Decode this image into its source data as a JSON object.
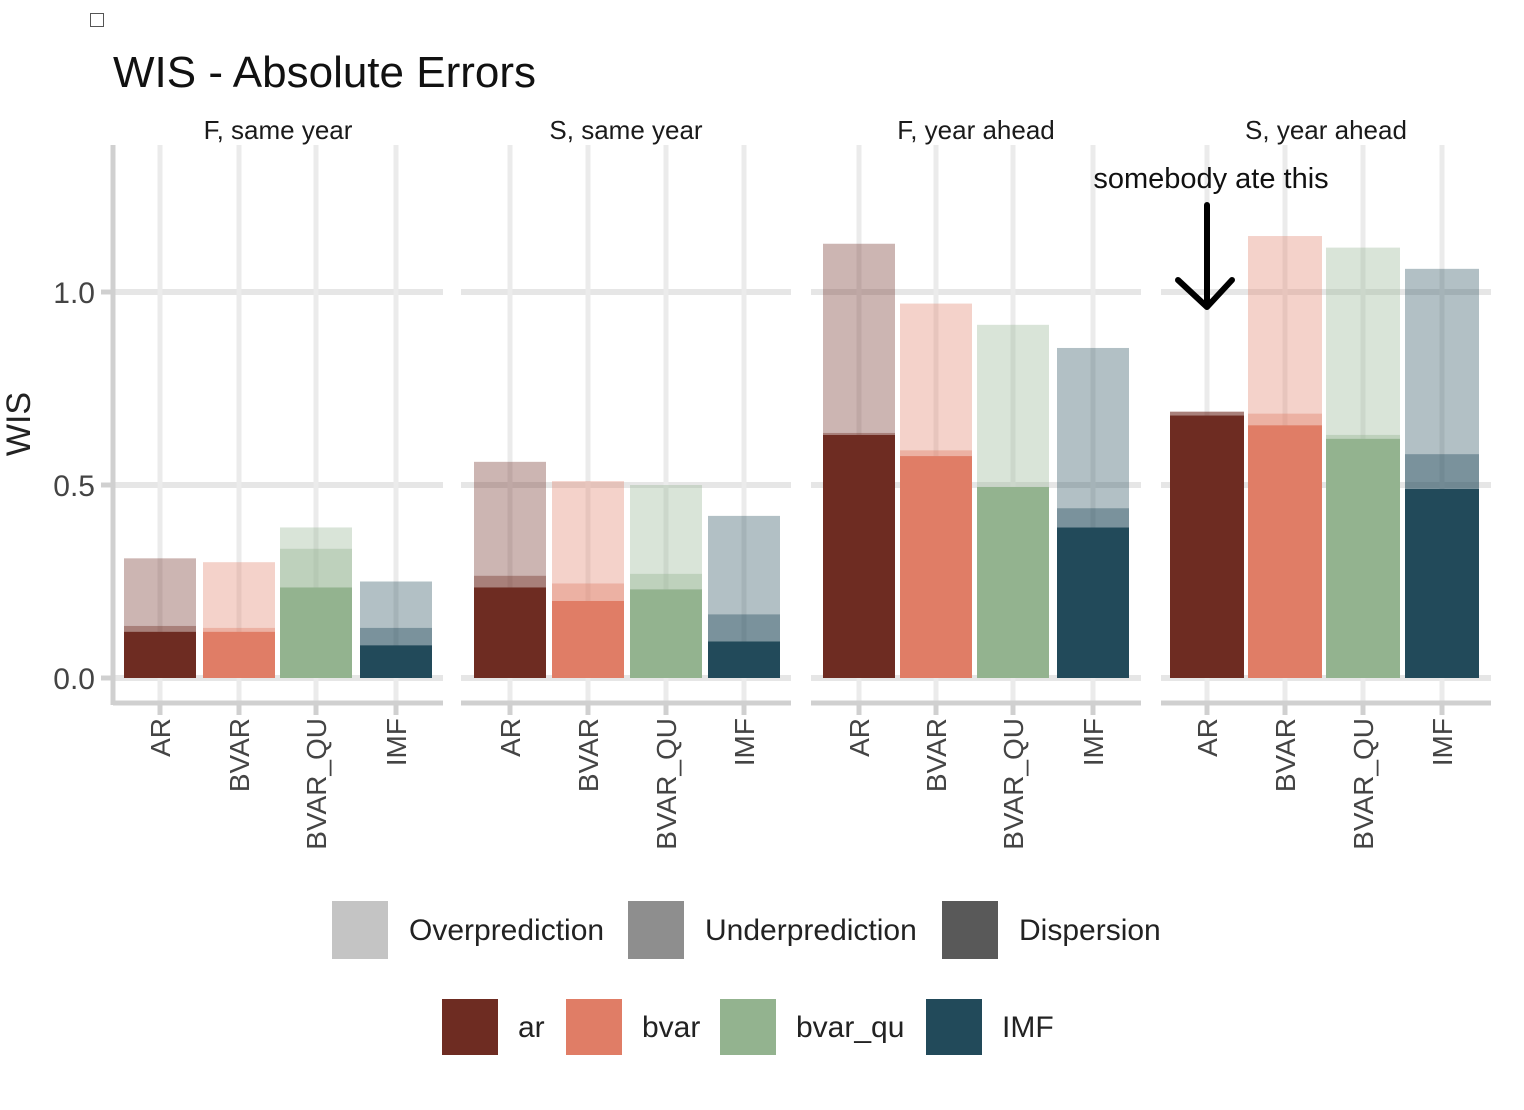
{
  "chart_data": {
    "type": "bar",
    "title": "WIS - Absolute Errors",
    "ylabel": "WIS",
    "xlabel": "",
    "ylim": [
      -0.07,
      1.4
    ],
    "yticks": [
      0.0,
      0.5,
      1.0
    ],
    "ytick_labels": [
      "0.0",
      "0.5",
      "1.0"
    ],
    "grid": true,
    "stacking": "stacked: dispersion (bottom), underprediction (middle), overprediction (top)",
    "categories": [
      "AR",
      "BVAR",
      "BVAR_QU",
      "IMF"
    ],
    "series_colors": {
      "ar": "#6e2c22",
      "bvar": "#e07d66",
      "bvar_qu": "#93b38f",
      "IMF": "#224a5a"
    },
    "component_alpha": {
      "dispersion": 1.0,
      "underprediction": 0.6,
      "overprediction": 0.35
    },
    "panels": [
      {
        "name": "F, same year",
        "bars": [
          {
            "category": "AR",
            "series": "ar",
            "dispersion": 0.12,
            "underprediction": 0.015,
            "overprediction": 0.175
          },
          {
            "category": "BVAR",
            "series": "bvar",
            "dispersion": 0.12,
            "underprediction": 0.01,
            "overprediction": 0.17
          },
          {
            "category": "BVAR_QU",
            "series": "bvar_qu",
            "dispersion": 0.235,
            "underprediction": 0.1,
            "overprediction": 0.055
          },
          {
            "category": "IMF",
            "series": "IMF",
            "dispersion": 0.085,
            "underprediction": 0.045,
            "overprediction": 0.12
          }
        ]
      },
      {
        "name": "S, same year",
        "bars": [
          {
            "category": "AR",
            "series": "ar",
            "dispersion": 0.235,
            "underprediction": 0.03,
            "overprediction": 0.295
          },
          {
            "category": "BVAR",
            "series": "bvar",
            "dispersion": 0.2,
            "underprediction": 0.045,
            "overprediction": 0.265
          },
          {
            "category": "BVAR_QU",
            "series": "bvar_qu",
            "dispersion": 0.23,
            "underprediction": 0.04,
            "overprediction": 0.23
          },
          {
            "category": "IMF",
            "series": "IMF",
            "dispersion": 0.095,
            "underprediction": 0.07,
            "overprediction": 0.255
          }
        ]
      },
      {
        "name": "F, year ahead",
        "bars": [
          {
            "category": "AR",
            "series": "ar",
            "dispersion": 0.63,
            "underprediction": 0.005,
            "overprediction": 0.49
          },
          {
            "category": "BVAR",
            "series": "bvar",
            "dispersion": 0.575,
            "underprediction": 0.015,
            "overprediction": 0.38
          },
          {
            "category": "BVAR_QU",
            "series": "bvar_qu",
            "dispersion": 0.495,
            "underprediction": 0.0,
            "overprediction": 0.42
          },
          {
            "category": "IMF",
            "series": "IMF",
            "dispersion": 0.39,
            "underprediction": 0.05,
            "overprediction": 0.415
          }
        ]
      },
      {
        "name": "S, year ahead",
        "bars": [
          {
            "category": "AR",
            "series": "ar",
            "dispersion": 0.68,
            "underprediction": 0.01,
            "overprediction": 0.0
          },
          {
            "category": "BVAR",
            "series": "bvar",
            "dispersion": 0.655,
            "underprediction": 0.03,
            "overprediction": 0.46
          },
          {
            "category": "BVAR_QU",
            "series": "bvar_qu",
            "dispersion": 0.62,
            "underprediction": 0.01,
            "overprediction": 0.485
          },
          {
            "category": "IMF",
            "series": "IMF",
            "dispersion": 0.49,
            "underprediction": 0.09,
            "overprediction": 0.48
          }
        ]
      }
    ],
    "legend": {
      "placement": "bottom",
      "components": [
        {
          "label": "Overprediction",
          "color": "#c4c4c4"
        },
        {
          "label": "Underprediction",
          "color": "#8e8e8e"
        },
        {
          "label": "Dispersion",
          "color": "#595959"
        }
      ],
      "models": [
        {
          "label": "ar",
          "color": "#6e2c22"
        },
        {
          "label": "bvar",
          "color": "#e07d66"
        },
        {
          "label": "bvar_qu",
          "color": "#93b38f"
        },
        {
          "label": "IMF",
          "color": "#224a5a"
        }
      ]
    },
    "annotation": {
      "text": "somebody ate this",
      "panel": "S, year ahead",
      "category": "AR",
      "arrow": "down"
    }
  }
}
